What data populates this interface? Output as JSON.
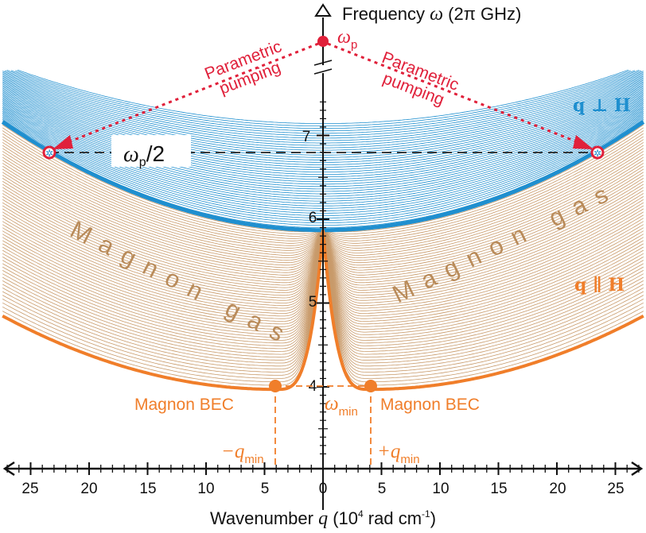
{
  "y_axis": {
    "title_prefix": "Frequency ",
    "title_symbol": "ω",
    "title_suffix": " (2π GHz)",
    "ticks": [
      "7",
      "6",
      "5",
      "4"
    ]
  },
  "x_axis": {
    "title_prefix": "Wavenumber ",
    "title_symbol": "q",
    "title_units_a": " (10",
    "title_units_sup": "4",
    "title_units_b": " rad cm",
    "title_units_sup2": "-1",
    "title_units_c": ")",
    "tick_labels": [
      "25",
      "20",
      "15",
      "10",
      "5",
      "0",
      "5",
      "10",
      "15",
      "20",
      "25"
    ]
  },
  "labels": {
    "pump_symbol": "ω",
    "pump_sub": "p",
    "pumping_line1": "Parametric",
    "pumping_line2": "pumping",
    "half_symbol": "ω",
    "half_sub": "p",
    "half_rest": "/2",
    "magnon_gas": "Magnon gas",
    "magnon_bec": "Magnon BEC",
    "omega_min_symbol": "ω",
    "omega_min_sub": "min",
    "minus_q_min": "−q",
    "plus_q_min": "+q",
    "q_min_sub": "min",
    "q_perp_h": "q ⊥ H",
    "q_par_h": "q ∥ H"
  },
  "colors": {
    "blue_family": "#1f8fcf",
    "orange_family": "#f07e2a",
    "thin_orange": "#c89a6a",
    "red": "#e0203a",
    "axis": "#111111"
  },
  "chart_data": {
    "type": "line",
    "x_range": [
      -27,
      27
    ],
    "y_range_note": "broken axis between 7 and pump frequency",
    "y_ticks": [
      4,
      5,
      6,
      7
    ],
    "series_blue_boundary": {
      "q_min_at": 0,
      "omega_at_q0": 5.87,
      "omega_at_q23": 6.8
    },
    "series_orange_boundary": {
      "q_min": 4,
      "omega_min": 3.97,
      "omega_at_q27": 5.1
    },
    "pump_point": {
      "q": 0,
      "label": "ωp"
    },
    "half_pump_points": [
      {
        "q": -23.3,
        "omega": 6.8
      },
      {
        "q": 23.3,
        "omega": 6.8
      }
    ],
    "bec_points": [
      {
        "q": -4,
        "omega": 3.97
      },
      {
        "q": 4,
        "omega": 3.97
      }
    ]
  }
}
